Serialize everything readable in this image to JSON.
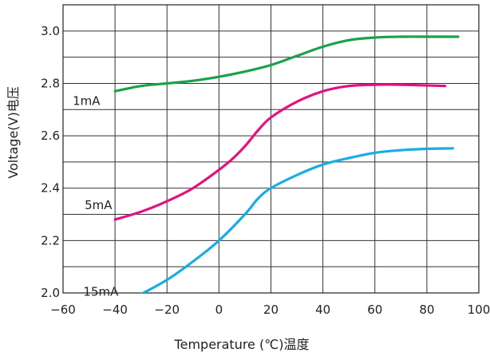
{
  "chart_data": {
    "type": "line",
    "title": "",
    "xlabel": "Temperature (℃)温度",
    "ylabel": "Voltage(V)电压",
    "xlim": [
      -60,
      100
    ],
    "ylim": [
      2.0,
      3.1
    ],
    "xticks": [
      -60,
      -40,
      -20,
      0,
      20,
      40,
      60,
      80,
      100
    ],
    "yticks": [
      2.0,
      2.2,
      2.4,
      2.6,
      2.8,
      3.0
    ],
    "x_tick_labels": [
      "−60",
      "−40",
      "−20",
      "0",
      "20",
      "40",
      "60",
      "80",
      "100"
    ],
    "y_tick_labels": [
      "2.0",
      "2.2",
      "2.4",
      "2.6",
      "2.8",
      "3.0"
    ],
    "grid": true,
    "series": [
      {
        "name": "1mA",
        "color": "#1aa24a",
        "x": [
          -40,
          -30,
          -20,
          -10,
          0,
          10,
          20,
          30,
          40,
          50,
          60,
          70,
          80,
          92
        ],
        "y": [
          2.77,
          2.79,
          2.8,
          2.81,
          2.825,
          2.845,
          2.87,
          2.905,
          2.94,
          2.965,
          2.975,
          2.978,
          2.978,
          2.978
        ]
      },
      {
        "name": "5mA",
        "color": "#e0147f",
        "x": [
          -40,
          -30,
          -20,
          -10,
          0,
          5,
          10,
          15,
          20,
          30,
          40,
          50,
          60,
          70,
          87
        ],
        "y": [
          2.28,
          2.31,
          2.35,
          2.4,
          2.47,
          2.51,
          2.56,
          2.62,
          2.67,
          2.73,
          2.77,
          2.79,
          2.795,
          2.795,
          2.79
        ]
      },
      {
        "name": "15mA",
        "color": "#1aace4",
        "x": [
          -31,
          -20,
          -10,
          0,
          10,
          15,
          20,
          30,
          40,
          50,
          60,
          70,
          80,
          90
        ],
        "y": [
          1.99,
          2.05,
          2.12,
          2.2,
          2.3,
          2.36,
          2.4,
          2.45,
          2.49,
          2.515,
          2.535,
          2.545,
          2.55,
          2.552
        ]
      }
    ]
  }
}
